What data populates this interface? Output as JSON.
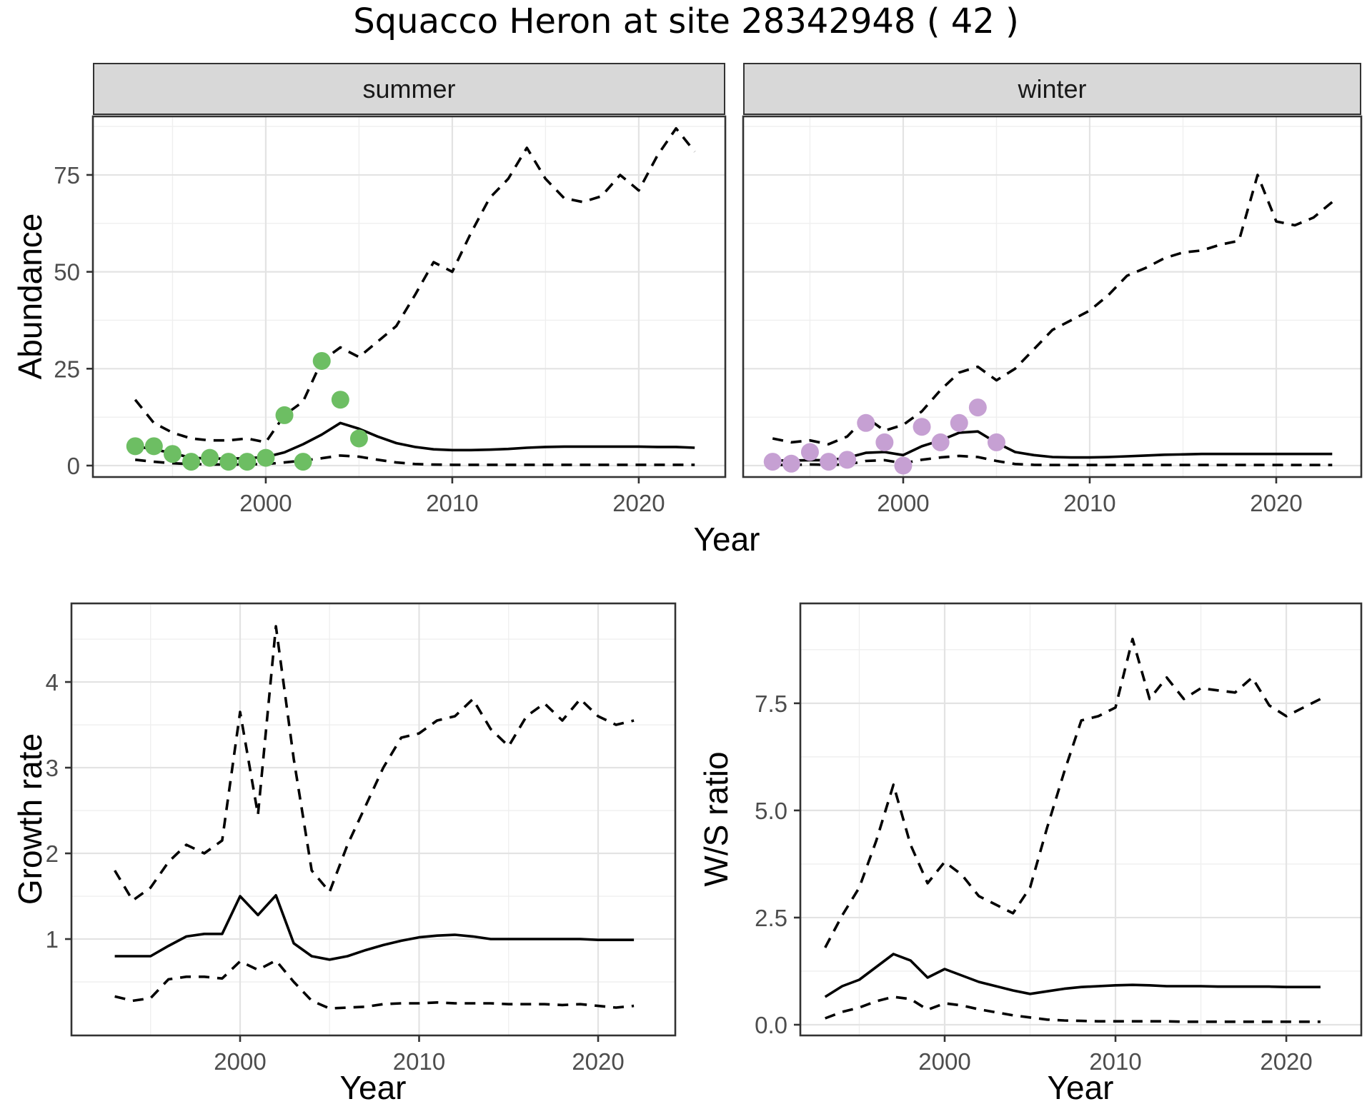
{
  "title": "Squacco Heron at site 28342948 ( 42 )",
  "colors": {
    "summer_points": "#6DBE63",
    "winter_points": "#C6A0D3",
    "line": "#000000",
    "panel_border": "#333333",
    "grid_major": "#E3E3E3",
    "grid_minor": "#EFEFEF",
    "tick_text": "#4D4D4D",
    "strip_fill": "#D8D8D8",
    "background": "#FFFFFF"
  },
  "chart_data": [
    {
      "id": "abundance_summer",
      "type": "line",
      "facet_label": "summer",
      "ylabel": "Abundance",
      "xlabel": "Year",
      "xlim": [
        1990.73,
        2024.64
      ],
      "ylim": [
        -2.95,
        90.1
      ],
      "grid": true,
      "legend_position": "none",
      "x_ticks": {
        "values": [
          2000,
          2010,
          2020
        ],
        "labels": [
          "2000",
          "2010",
          "2020"
        ],
        "minor": [
          1995,
          2005,
          2015
        ]
      },
      "y_ticks": {
        "values": [
          0,
          25,
          50,
          75
        ],
        "labels": [
          "0",
          "25",
          "50",
          "75"
        ],
        "minor": [
          12.5,
          37.5,
          62.5,
          87.5
        ]
      },
      "years": [
        1993,
        1994,
        1995,
        1996,
        1997,
        1998,
        1999,
        2000,
        2001,
        2002,
        2003,
        2004,
        2005,
        2006,
        2007,
        2008,
        2009,
        2010,
        2011,
        2012,
        2013,
        2014,
        2015,
        2016,
        2017,
        2018,
        2019,
        2020,
        2021,
        2022,
        2023
      ],
      "series": [
        {
          "name": "upper_ci",
          "style": "dashed",
          "values": [
            17,
            11,
            8.5,
            7,
            6.5,
            6.5,
            7,
            6,
            13,
            16.5,
            27,
            30.5,
            28,
            32,
            36,
            44,
            52.5,
            50,
            60,
            69,
            74,
            82,
            74,
            69,
            68,
            69.5,
            75,
            71,
            80,
            87,
            81
          ]
        },
        {
          "name": "lower_ci",
          "style": "dashed",
          "values": [
            1.5,
            1,
            0.6,
            0.4,
            0.3,
            0.3,
            0.3,
            0.4,
            0.8,
            1.3,
            1.9,
            2.6,
            2.3,
            1.5,
            0.8,
            0.4,
            0.25,
            0.2,
            0.2,
            0.2,
            0.2,
            0.2,
            0.2,
            0.2,
            0.2,
            0.2,
            0.2,
            0.2,
            0.2,
            0.2,
            0.2
          ]
        },
        {
          "name": "median",
          "style": "solid",
          "values": [
            5,
            4.2,
            3.2,
            2,
            1.8,
            1.8,
            1.9,
            2.2,
            3.4,
            5.5,
            8,
            11,
            9.5,
            7.5,
            5.8,
            4.8,
            4.2,
            4,
            4,
            4.1,
            4.3,
            4.6,
            4.8,
            4.9,
            4.9,
            4.9,
            4.9,
            4.9,
            4.8,
            4.8,
            4.6
          ]
        },
        {
          "name": "observations",
          "style": "points",
          "color": "#6DBE63",
          "x": [
            1993,
            1994,
            1995,
            1996,
            1997,
            1998,
            1999,
            2000,
            2001,
            2002,
            2003,
            2004,
            2005
          ],
          "values": [
            5,
            5,
            3,
            1,
            2,
            1,
            1,
            2,
            13,
            1,
            27,
            17,
            7
          ]
        }
      ]
    },
    {
      "id": "abundance_winter",
      "type": "line",
      "facet_label": "winter",
      "ylabel": "Abundance",
      "xlabel": "Year",
      "xlim": [
        1991.42,
        2024.56
      ],
      "ylim": [
        -2.95,
        90.1
      ],
      "grid": true,
      "legend_position": "none",
      "x_ticks": {
        "values": [
          2000,
          2010,
          2020
        ],
        "labels": [
          "2000",
          "2010",
          "2020"
        ],
        "minor": [
          1995,
          2005,
          2015
        ]
      },
      "y_ticks": {
        "values": [
          0,
          25,
          50,
          75
        ],
        "labels": [
          "0",
          "25",
          "50",
          "75"
        ],
        "minor": [
          12.5,
          37.5,
          62.5,
          87.5
        ]
      },
      "years": [
        1993,
        1994,
        1995,
        1996,
        1997,
        1998,
        1999,
        2000,
        2001,
        2002,
        2003,
        2004,
        2005,
        2006,
        2007,
        2008,
        2009,
        2010,
        2011,
        2012,
        2013,
        2014,
        2015,
        2016,
        2017,
        2018,
        2019,
        2020,
        2021,
        2022,
        2023
      ],
      "series": [
        {
          "name": "upper_ci",
          "style": "dashed",
          "values": [
            7,
            6,
            6.5,
            5.5,
            7.5,
            12.5,
            9,
            10.5,
            14,
            19.5,
            24,
            25.5,
            22,
            25,
            30,
            35,
            37.5,
            40,
            44,
            49,
            51,
            53.5,
            55,
            55.5,
            57,
            58,
            75,
            63,
            62,
            64,
            68
          ]
        },
        {
          "name": "lower_ci",
          "style": "dashed",
          "values": [
            0.2,
            0.15,
            0.3,
            0.2,
            0.3,
            1.2,
            1.4,
            0.6,
            1.5,
            2.1,
            2.5,
            2.2,
            1.2,
            0.4,
            0.2,
            0.15,
            0.15,
            0.15,
            0.15,
            0.15,
            0.15,
            0.15,
            0.15,
            0.15,
            0.15,
            0.15,
            0.15,
            0.15,
            0.15,
            0.15,
            0.15
          ]
        },
        {
          "name": "median",
          "style": "solid",
          "values": [
            1.3,
            1.3,
            1.4,
            1.4,
            2,
            3.3,
            3.5,
            2.7,
            5,
            6.5,
            8.5,
            8.8,
            5.9,
            3.5,
            2.7,
            2.2,
            2.1,
            2.1,
            2.2,
            2.4,
            2.6,
            2.8,
            2.9,
            3,
            3,
            3,
            3,
            3,
            3,
            3,
            3
          ]
        },
        {
          "name": "observations",
          "style": "points",
          "color": "#C6A0D3",
          "x": [
            1993,
            1994,
            1995,
            1996,
            1997,
            1998,
            1999,
            2000,
            2001,
            2002,
            2003,
            2004,
            2005
          ],
          "values": [
            1,
            0.5,
            3.5,
            1,
            1.5,
            11,
            6,
            0,
            10,
            6,
            11,
            15,
            6
          ]
        }
      ]
    },
    {
      "id": "growth_rate",
      "type": "line",
      "facet_label": "",
      "ylabel": "Growth rate",
      "xlabel": "Year",
      "xlim": [
        1990.58,
        2024.31
      ],
      "ylim": [
        -0.125,
        4.917
      ],
      "grid": true,
      "legend_position": "none",
      "x_ticks": {
        "values": [
          2000,
          2010,
          2020
        ],
        "labels": [
          "2000",
          "2010",
          "2020"
        ],
        "minor": [
          1995,
          2005,
          2015
        ]
      },
      "y_ticks": {
        "values": [
          1,
          2,
          3,
          4
        ],
        "labels": [
          "1",
          "2",
          "3",
          "4"
        ],
        "minor": [
          0.5,
          1.5,
          2.5,
          3.5,
          4.5
        ]
      },
      "years": [
        1993,
        1994,
        1995,
        1996,
        1997,
        1998,
        1999,
        2000,
        2001,
        2002,
        2003,
        2004,
        2005,
        2006,
        2007,
        2008,
        2009,
        2010,
        2011,
        2012,
        2013,
        2014,
        2015,
        2016,
        2017,
        2018,
        2019,
        2020,
        2021,
        2022
      ],
      "series": [
        {
          "name": "upper_ci",
          "style": "dashed",
          "values": [
            1.8,
            1.45,
            1.6,
            1.9,
            2.1,
            2.0,
            2.15,
            3.65,
            2.45,
            4.65,
            3.1,
            1.8,
            1.55,
            2.1,
            2.55,
            3.0,
            3.35,
            3.4,
            3.55,
            3.6,
            3.8,
            3.45,
            3.25,
            3.6,
            3.75,
            3.55,
            3.8,
            3.6,
            3.5,
            3.55
          ]
        },
        {
          "name": "lower_ci",
          "style": "dashed",
          "values": [
            0.33,
            0.28,
            0.31,
            0.53,
            0.56,
            0.56,
            0.54,
            0.74,
            0.64,
            0.75,
            0.5,
            0.28,
            0.19,
            0.2,
            0.21,
            0.24,
            0.25,
            0.25,
            0.26,
            0.25,
            0.25,
            0.25,
            0.24,
            0.24,
            0.24,
            0.23,
            0.24,
            0.22,
            0.2,
            0.22
          ]
        },
        {
          "name": "median",
          "style": "solid",
          "values": [
            0.8,
            0.8,
            0.8,
            0.92,
            1.03,
            1.06,
            1.06,
            1.5,
            1.28,
            1.51,
            0.95,
            0.8,
            0.76,
            0.8,
            0.87,
            0.93,
            0.98,
            1.02,
            1.04,
            1.05,
            1.03,
            1.0,
            1.0,
            1.0,
            1.0,
            1.0,
            1.0,
            0.99,
            0.99,
            0.99
          ]
        }
      ]
    },
    {
      "id": "ws_ratio",
      "type": "line",
      "facet_label": "",
      "ylabel": "W/S ratio",
      "xlabel": "Year",
      "xlim": [
        1991.55,
        2024.39
      ],
      "ylim": [
        -0.25,
        9.83
      ],
      "grid": true,
      "legend_position": "none",
      "x_ticks": {
        "values": [
          2000,
          2010,
          2020
        ],
        "labels": [
          "2000",
          "2010",
          "2020"
        ],
        "minor": [
          1995,
          2005,
          2015
        ]
      },
      "y_ticks": {
        "values": [
          0,
          2.5,
          5,
          7.5
        ],
        "labels": [
          "0.0",
          "2.5",
          "5.0",
          "7.5"
        ],
        "minor": [
          1.25,
          3.75,
          6.25,
          8.75
        ]
      },
      "years": [
        1993,
        1994,
        1995,
        1996,
        1997,
        1998,
        1999,
        2000,
        2001,
        2002,
        2003,
        2004,
        2005,
        2006,
        2007,
        2008,
        2009,
        2010,
        2011,
        2012,
        2013,
        2014,
        2015,
        2016,
        2017,
        2018,
        2019,
        2020,
        2021,
        2022
      ],
      "series": [
        {
          "name": "upper_ci",
          "style": "dashed",
          "values": [
            1.8,
            2.55,
            3.2,
            4.3,
            5.6,
            4.2,
            3.3,
            3.8,
            3.5,
            3.0,
            2.8,
            2.6,
            3.2,
            4.6,
            5.9,
            7.1,
            7.2,
            7.4,
            9.0,
            7.6,
            8.1,
            7.6,
            7.85,
            7.8,
            7.75,
            8.1,
            7.45,
            7.2,
            7.4,
            7.6
          ]
        },
        {
          "name": "lower_ci",
          "style": "dashed",
          "values": [
            0.15,
            0.3,
            0.4,
            0.55,
            0.65,
            0.6,
            0.35,
            0.5,
            0.45,
            0.36,
            0.29,
            0.22,
            0.17,
            0.12,
            0.1,
            0.09,
            0.08,
            0.08,
            0.08,
            0.08,
            0.08,
            0.07,
            0.07,
            0.07,
            0.07,
            0.07,
            0.07,
            0.07,
            0.07,
            0.07
          ]
        },
        {
          "name": "median",
          "style": "solid",
          "values": [
            0.65,
            0.9,
            1.05,
            1.35,
            1.65,
            1.5,
            1.1,
            1.3,
            1.15,
            1.0,
            0.9,
            0.8,
            0.72,
            0.78,
            0.84,
            0.88,
            0.9,
            0.92,
            0.93,
            0.92,
            0.9,
            0.9,
            0.9,
            0.89,
            0.89,
            0.89,
            0.89,
            0.88,
            0.88,
            0.88
          ]
        }
      ]
    }
  ]
}
